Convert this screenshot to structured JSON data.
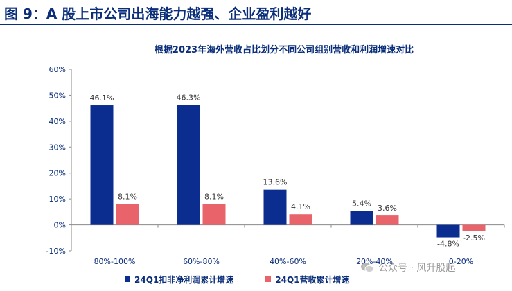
{
  "header": {
    "title": "图 9：A 股上市公司出海能力越强、企业盈利越好"
  },
  "chart_data": {
    "type": "bar",
    "title": "根据2023年海外营收占比划分不同公司组别营收和利润增速对比",
    "categories": [
      "80%-100%",
      "60%-80%",
      "40%-60%",
      "20%-40%",
      "0-20%"
    ],
    "series": [
      {
        "name": "24Q1扣非净利润累计增速",
        "values": [
          46.1,
          46.3,
          13.6,
          5.4,
          -4.8
        ],
        "color": "#0a2d8f"
      },
      {
        "name": "24Q1营收累计增速",
        "values": [
          8.1,
          8.1,
          4.1,
          3.6,
          -2.5
        ],
        "color": "#e8636a"
      }
    ],
    "ylim": [
      -10,
      60
    ],
    "yticks": [
      -10,
      0,
      10,
      20,
      30,
      40,
      50,
      60
    ],
    "ytick_labels": [
      "-10%",
      "0%",
      "10%",
      "20%",
      "30%",
      "40%",
      "50%",
      "60%"
    ],
    "data_labels": [
      [
        "46.1%",
        "46.3%",
        "13.6%",
        "5.4%",
        "-4.8%"
      ],
      [
        "8.1%",
        "8.1%",
        "4.1%",
        "3.6%",
        "-2.5%"
      ]
    ],
    "legend_position": "bottom",
    "grid": false
  },
  "watermark": {
    "text": "公众号 · 风升股起",
    "icon": "wechat-icon"
  }
}
